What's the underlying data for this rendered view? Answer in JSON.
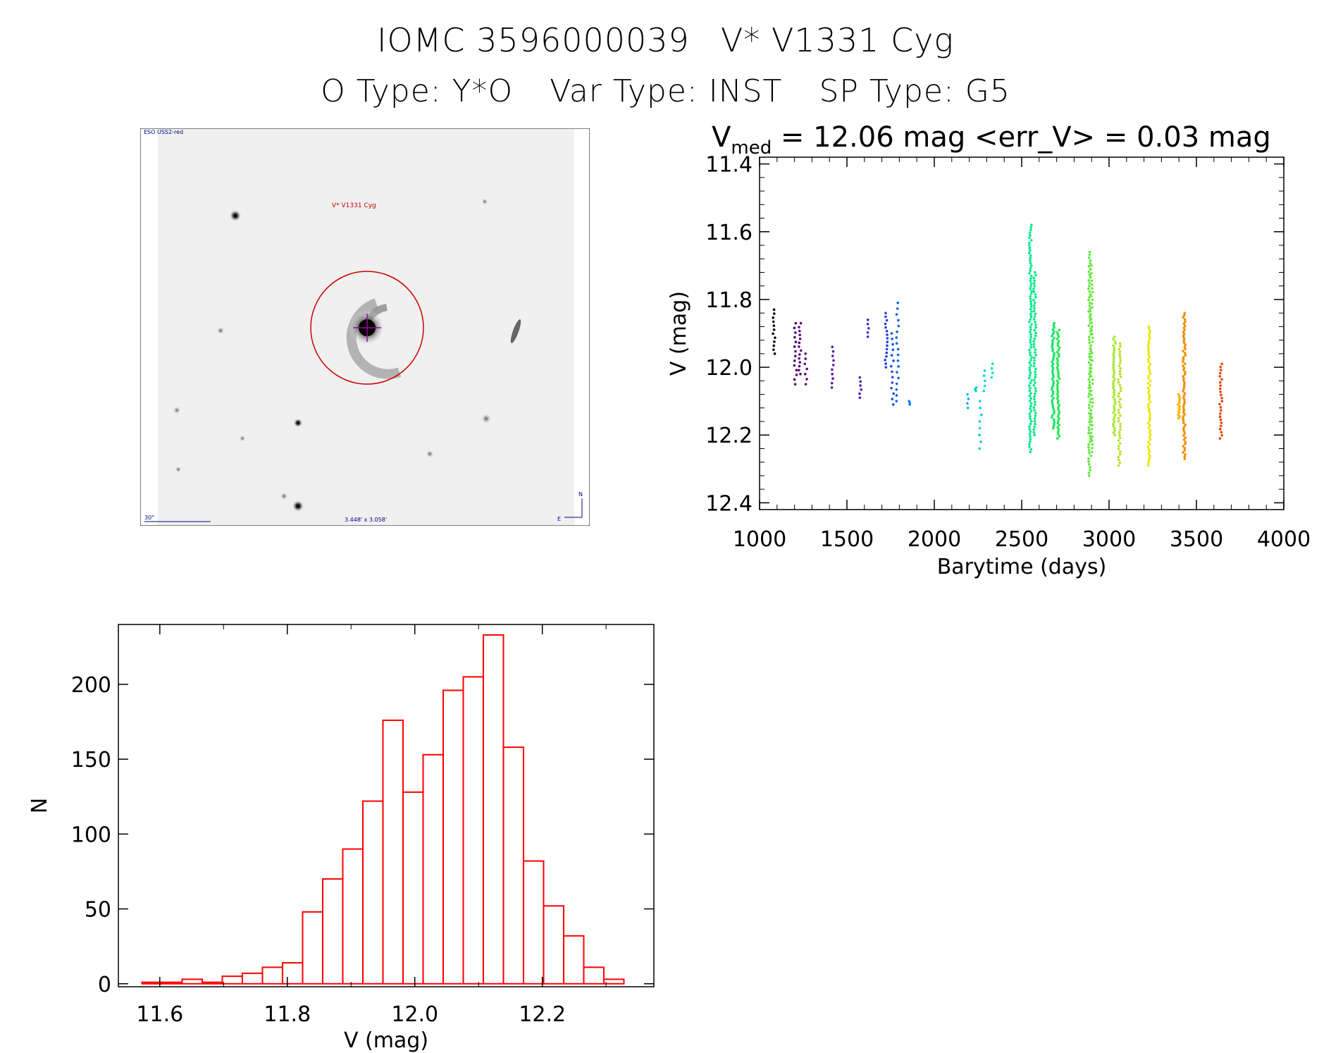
{
  "header": {
    "title_left": "IOMC 3596000039",
    "title_right": "V* V1331 Cyg",
    "otype": "O Type: Y*O",
    "vartype": "Var Type: INST",
    "sptype": "SP Type: G5"
  },
  "stamp": {
    "survey": "ESO USS2-red",
    "target": "V* V1331 Cyg",
    "scale": "30\"",
    "fov": "3.448' x 3.058'",
    "north": "N",
    "east": "E"
  },
  "lightcurve_title": {
    "v": "V",
    "sub": "med",
    "rest": " = 12.06 mag <err_V> = 0.03 mag"
  },
  "chart_data": [
    {
      "type": "scatter",
      "xlabel": "Barytime (days)",
      "ylabel": "V (mag)",
      "xlim": [
        1000,
        4000
      ],
      "ylim": [
        12.42,
        11.38
      ],
      "inverted_y": true,
      "xticks": [
        "1000",
        "1500",
        "2000",
        "2500",
        "3000",
        "3500",
        "4000"
      ],
      "yticks": [
        "11.4",
        "11.6",
        "11.8",
        "12.0",
        "12.2",
        "12.4"
      ],
      "groups": [
        {
          "x": 1083,
          "ymin": 11.83,
          "ymax": 11.96,
          "color": "#000000",
          "n": 12
        },
        {
          "x": 1205,
          "ymin": 11.87,
          "ymax": 12.05,
          "color": "#4a0a6a",
          "n": 14
        },
        {
          "x": 1230,
          "ymin": 11.87,
          "ymax": 12.02,
          "color": "#5a0a80",
          "n": 14
        },
        {
          "x": 1265,
          "ymin": 11.96,
          "ymax": 12.05,
          "color": "#5a0a80",
          "n": 7
        },
        {
          "x": 1420,
          "ymin": 11.94,
          "ymax": 12.06,
          "color": "#5a1aa0",
          "n": 10
        },
        {
          "x": 1575,
          "ymin": 12.03,
          "ymax": 12.09,
          "color": "#4a20b0",
          "n": 6
        },
        {
          "x": 1620,
          "ymin": 11.86,
          "ymax": 11.91,
          "color": "#3a30c8",
          "n": 5
        },
        {
          "x": 1725,
          "ymin": 11.84,
          "ymax": 12.0,
          "color": "#2040e0",
          "n": 16
        },
        {
          "x": 1760,
          "ymin": 11.9,
          "ymax": 12.11,
          "color": "#1050e8",
          "n": 14
        },
        {
          "x": 1790,
          "ymin": 11.81,
          "ymax": 12.1,
          "color": "#0a60f0",
          "n": 18
        },
        {
          "x": 1855,
          "ymin": 12.1,
          "ymax": 12.11,
          "color": "#0a80f0",
          "n": 3
        },
        {
          "x": 2195,
          "ymin": 12.08,
          "ymax": 12.12,
          "color": "#00b8e8",
          "n": 4
        },
        {
          "x": 2240,
          "ymin": 12.06,
          "ymax": 12.07,
          "color": "#00c8e0",
          "n": 3
        },
        {
          "x": 2265,
          "ymin": 12.1,
          "ymax": 12.24,
          "color": "#00d0d8",
          "n": 8
        },
        {
          "x": 2290,
          "ymin": 12.01,
          "ymax": 12.07,
          "color": "#00d8d0",
          "n": 5
        },
        {
          "x": 2330,
          "ymin": 11.99,
          "ymax": 12.03,
          "color": "#00e0c8",
          "n": 4
        },
        {
          "x": 2550,
          "ymin": 11.58,
          "ymax": 12.25,
          "color": "#00e890",
          "n": 90
        },
        {
          "x": 2575,
          "ymin": 11.72,
          "ymax": 12.2,
          "color": "#00ea80",
          "n": 60
        },
        {
          "x": 2680,
          "ymin": 11.87,
          "ymax": 12.18,
          "color": "#10e860",
          "n": 50
        },
        {
          "x": 2710,
          "ymin": 11.89,
          "ymax": 12.21,
          "color": "#20e850",
          "n": 50
        },
        {
          "x": 2890,
          "ymin": 11.66,
          "ymax": 12.32,
          "color": "#60e840",
          "n": 80
        },
        {
          "x": 2900,
          "ymin": 11.7,
          "ymax": 12.25,
          "color": "#70e840",
          "n": 50
        },
        {
          "x": 3030,
          "ymin": 11.91,
          "ymax": 12.2,
          "color": "#a8e830",
          "n": 45
        },
        {
          "x": 3060,
          "ymin": 11.93,
          "ymax": 12.29,
          "color": "#b8e028",
          "n": 45
        },
        {
          "x": 3230,
          "ymin": 11.88,
          "ymax": 12.29,
          "color": "#e8e800",
          "n": 60
        },
        {
          "x": 3400,
          "ymin": 12.08,
          "ymax": 12.15,
          "color": "#f0b800",
          "n": 15
        },
        {
          "x": 3430,
          "ymin": 11.84,
          "ymax": 12.27,
          "color": "#f09000",
          "n": 70
        },
        {
          "x": 3640,
          "ymin": 11.99,
          "ymax": 12.21,
          "color": "#f04010",
          "n": 25
        }
      ]
    },
    {
      "type": "bar",
      "xlabel": "V (mag)",
      "ylabel": "N",
      "xlim": [
        11.535,
        12.375
      ],
      "ylim": [
        -2,
        240
      ],
      "xticks": [
        "11.6",
        "11.8",
        "12.0",
        "12.2"
      ],
      "yticks": [
        "0",
        "50",
        "100",
        "150",
        "200"
      ],
      "color": "#ff0000",
      "bin_start": 11.572,
      "bin_width": 0.0315,
      "values": [
        1,
        1,
        3,
        1,
        5,
        7,
        11,
        14,
        48,
        70,
        90,
        122,
        176,
        128,
        153,
        196,
        205,
        233,
        158,
        82,
        52,
        32,
        11,
        3
      ]
    }
  ]
}
